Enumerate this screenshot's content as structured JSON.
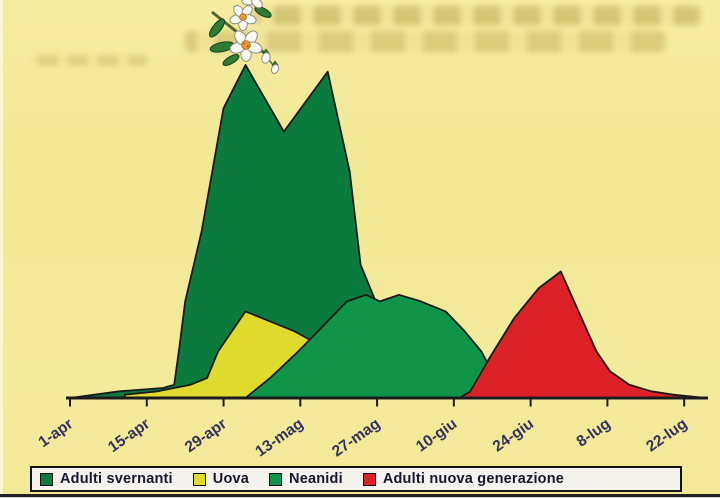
{
  "chart_data": {
    "type": "area",
    "title": "",
    "x_axis": {
      "tick_labels": [
        "1-apr",
        "15-apr",
        "29-apr",
        "13-mag",
        "27-mag",
        "10-giu",
        "24-giu",
        "8-lug",
        "22-lug"
      ],
      "tick_interval_days": 14,
      "day0_label": "1-apr"
    },
    "y_axis": {
      "visible": false,
      "scale": "relative abundance",
      "ylim": [
        0,
        100
      ]
    },
    "grid": false,
    "legend_position": "bottom",
    "outline_color": "#1a1a1a",
    "series": [
      {
        "name": "Adulti svernanti",
        "color": "#0a7a3e",
        "points": [
          [
            0,
            0
          ],
          [
            9,
            2
          ],
          [
            17,
            3
          ],
          [
            19,
            4
          ],
          [
            20,
            16
          ],
          [
            21,
            29
          ],
          [
            24,
            50
          ],
          [
            28,
            87
          ],
          [
            32,
            100
          ],
          [
            39,
            80
          ],
          [
            47,
            98
          ],
          [
            51,
            68
          ],
          [
            53,
            40
          ],
          [
            56,
            28
          ],
          [
            58,
            20
          ],
          [
            60,
            8
          ],
          [
            63,
            3
          ],
          [
            66,
            1
          ],
          [
            68,
            0
          ]
        ]
      },
      {
        "name": "Uova",
        "color": "#e0da2d",
        "points": [
          [
            10,
            1
          ],
          [
            16,
            2
          ],
          [
            22,
            4
          ],
          [
            25,
            6
          ],
          [
            27,
            14
          ],
          [
            32,
            26
          ],
          [
            36.5,
            23
          ],
          [
            41,
            20
          ],
          [
            46.5,
            15
          ],
          [
            51,
            9
          ],
          [
            55.5,
            3
          ],
          [
            59,
            1
          ],
          [
            62,
            0
          ]
        ]
      },
      {
        "name": "Neanidi",
        "color": "#0f9449",
        "points": [
          [
            32,
            0
          ],
          [
            36.5,
            6
          ],
          [
            41,
            13
          ],
          [
            44,
            18
          ],
          [
            47.5,
            24
          ],
          [
            50.5,
            29
          ],
          [
            54,
            31
          ],
          [
            56.5,
            29
          ],
          [
            60,
            31
          ],
          [
            64,
            29
          ],
          [
            68.5,
            26
          ],
          [
            72,
            20
          ],
          [
            75,
            14
          ],
          [
            77,
            8
          ],
          [
            79.5,
            3
          ],
          [
            82,
            1
          ],
          [
            86,
            0
          ]
        ]
      },
      {
        "name": "Adulti nuova generazione",
        "color": "#dc2127",
        "points": [
          [
            71,
            0
          ],
          [
            73,
            2
          ],
          [
            76.5,
            12
          ],
          [
            81,
            24
          ],
          [
            85.5,
            33
          ],
          [
            89.5,
            38
          ],
          [
            93,
            25
          ],
          [
            96,
            14
          ],
          [
            98.5,
            8
          ],
          [
            102,
            4
          ],
          [
            106,
            2
          ],
          [
            110,
            1
          ],
          [
            116,
            0
          ]
        ]
      }
    ]
  },
  "legend": {
    "items": [
      {
        "label": "Adulti svernanti",
        "color": "#0a7a3e"
      },
      {
        "label": "Uova",
        "color": "#e0da2d"
      },
      {
        "label": "Neanidi",
        "color": "#0f9449"
      },
      {
        "label": "Adulti nuova generazione",
        "color": "#dc2127"
      }
    ]
  },
  "colors": {
    "background": "#f2ea9a",
    "axis": "#1c1c1c",
    "tick_label_text": "#32325c",
    "legend_text": "#17172e",
    "legend_background": "#f5f3ee"
  }
}
